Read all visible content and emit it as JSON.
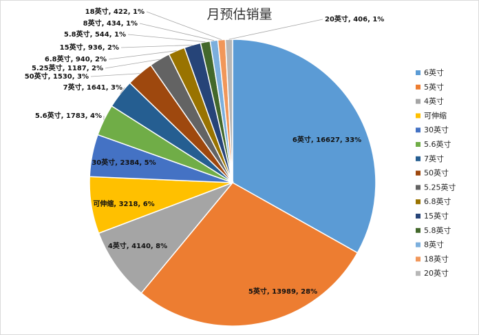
{
  "chart_data": {
    "type": "pie",
    "title": "月预估销量",
    "legend_position": "right",
    "slices": [
      {
        "label": "6英寸",
        "value": 16627,
        "percent": "33%",
        "color": "#5B9BD5",
        "data_label": "6英寸, 16627, 33%"
      },
      {
        "label": "5英寸",
        "value": 13989,
        "percent": "28%",
        "color": "#ED7D31",
        "data_label": "5英寸, 13989, 28%"
      },
      {
        "label": "4英寸",
        "value": 4140,
        "percent": "8%",
        "color": "#A5A5A5",
        "data_label": "4英寸, 4140, 8%"
      },
      {
        "label": "可伸缩",
        "value": 3218,
        "percent": "6%",
        "color": "#FFC000",
        "data_label": "可伸缩, 3218, 6%"
      },
      {
        "label": "30英寸",
        "value": 2384,
        "percent": "5%",
        "color": "#4472C4",
        "data_label": "30英寸, 2384, 5%"
      },
      {
        "label": "5.6英寸",
        "value": 1783,
        "percent": "4%",
        "color": "#70AD47",
        "data_label": "5.6英寸, 1783, 4%"
      },
      {
        "label": "7英寸",
        "value": 1641,
        "percent": "3%",
        "color": "#255E91",
        "data_label": "7英寸, 1641, 3%"
      },
      {
        "label": "50英寸",
        "value": 1530,
        "percent": "3%",
        "color": "#9E480E",
        "data_label": "50英寸, 1530, 3%"
      },
      {
        "label": "5.25英寸",
        "value": 1187,
        "percent": "2%",
        "color": "#636363",
        "data_label": "5.25英寸, 1187, 2%"
      },
      {
        "label": "6.8英寸",
        "value": 940,
        "percent": "2%",
        "color": "#997300",
        "data_label": "6.8英寸, 940, 2%"
      },
      {
        "label": "15英寸",
        "value": 936,
        "percent": "2%",
        "color": "#264478",
        "data_label": "15英寸, 936, 2%"
      },
      {
        "label": "5.8英寸",
        "value": 544,
        "percent": "1%",
        "color": "#43682B",
        "data_label": "5.8英寸, 544, 1%"
      },
      {
        "label": "8英寸",
        "value": 434,
        "percent": "1%",
        "color": "#7CAFDD",
        "data_label": "8英寸, 434, 1%"
      },
      {
        "label": "18英寸",
        "value": 422,
        "percent": "1%",
        "color": "#F1975A",
        "data_label": "18英寸, 422, 1%"
      },
      {
        "label": "20英寸",
        "value": 406,
        "percent": "1%",
        "color": "#B7B7B7",
        "data_label": "20英寸, 406, 1%"
      }
    ]
  }
}
